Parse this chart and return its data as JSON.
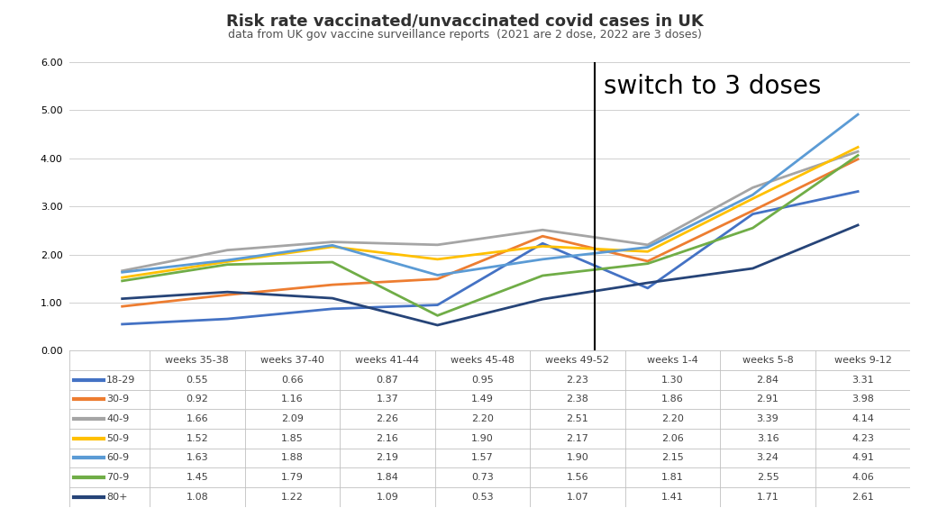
{
  "title": "Risk rate vaccinated/unvaccinated covid cases in UK",
  "subtitle": "data from UK gov vaccine surveillance reports  (2021 are 2 dose, 2022 are 3 doses)",
  "x_labels": [
    "weeks 35-38",
    "weeks 37-40",
    "weeks 41-44",
    "weeks 45-48",
    "weeks 49-52",
    "weeks 1-4",
    "weeks 5-8",
    "weeks 9-12"
  ],
  "series": [
    {
      "label": "18-29",
      "color": "#4472C4",
      "values": [
        0.55,
        0.66,
        0.87,
        0.95,
        2.23,
        1.3,
        2.84,
        3.31
      ]
    },
    {
      "label": "30-9",
      "color": "#ED7D31",
      "values": [
        0.92,
        1.16,
        1.37,
        1.49,
        2.38,
        1.86,
        2.91,
        3.98
      ]
    },
    {
      "label": "40-9",
      "color": "#A5A5A5",
      "values": [
        1.66,
        2.09,
        2.26,
        2.2,
        2.51,
        2.2,
        3.39,
        4.14
      ]
    },
    {
      "label": "50-9",
      "color": "#FFC000",
      "values": [
        1.52,
        1.85,
        2.16,
        1.9,
        2.17,
        2.06,
        3.16,
        4.23
      ]
    },
    {
      "label": "60-9",
      "color": "#5B9BD5",
      "values": [
        1.63,
        1.88,
        2.19,
        1.57,
        1.9,
        2.15,
        3.24,
        4.91
      ]
    },
    {
      "label": "70-9",
      "color": "#70AD47",
      "values": [
        1.45,
        1.79,
        1.84,
        0.73,
        1.56,
        1.81,
        2.55,
        4.06
      ]
    },
    {
      "label": "80+",
      "color": "#264478",
      "values": [
        1.08,
        1.22,
        1.09,
        0.53,
        1.07,
        1.41,
        1.71,
        2.61
      ]
    }
  ],
  "ylim": [
    0.0,
    6.0
  ],
  "yticks": [
    0.0,
    1.0,
    2.0,
    3.0,
    4.0,
    5.0,
    6.0
  ],
  "vline_x_idx": 5,
  "vline_label": "switch to 3 doses",
  "background_color": "#FFFFFF",
  "linewidth": 2.0,
  "title_fontsize": 13,
  "subtitle_fontsize": 9,
  "annotation_fontsize": 20,
  "axis_tick_fontsize": 8,
  "table_fontsize": 8
}
